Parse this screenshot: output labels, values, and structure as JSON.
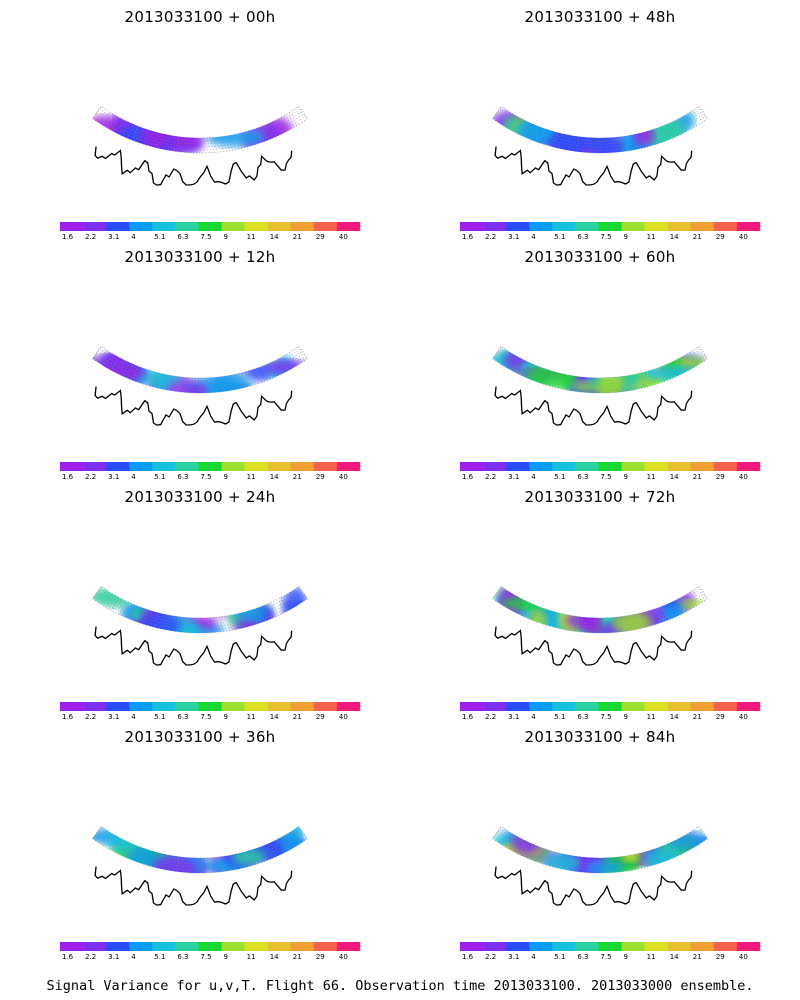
{
  "panels": [
    {
      "title": "2013033100 + 00h",
      "intensity": 0.15
    },
    {
      "title": "2013033100 + 48h",
      "intensity": 0.62
    },
    {
      "title": "2013033100 + 12h",
      "intensity": 0.3
    },
    {
      "title": "2013033100 + 60h",
      "intensity": 0.7
    },
    {
      "title": "2013033100 + 24h",
      "intensity": 0.4
    },
    {
      "title": "2013033100 + 72h",
      "intensity": 0.78
    },
    {
      "title": "2013033100 + 36h",
      "intensity": 0.5
    },
    {
      "title": "2013033100 + 84h",
      "intensity": 0.88
    }
  ],
  "colorbar": {
    "labels": [
      "1.6",
      "2.2",
      "3.1",
      "4",
      "5.1",
      "6.3",
      "7.5",
      "9",
      "11",
      "14",
      "21",
      "29",
      "40"
    ],
    "colors": [
      "#9b1fe8",
      "#7e2ff0",
      "#2b4bff",
      "#0a9cf2",
      "#18c0e0",
      "#2ad0a0",
      "#16d830",
      "#9be02e",
      "#dde020",
      "#e8c030",
      "#f0a030",
      "#f56050",
      "#f01878"
    ]
  },
  "caption": "Signal Variance for u,v,T. Flight 66. Observation time 2013033100. 2013033000 ensemble."
}
